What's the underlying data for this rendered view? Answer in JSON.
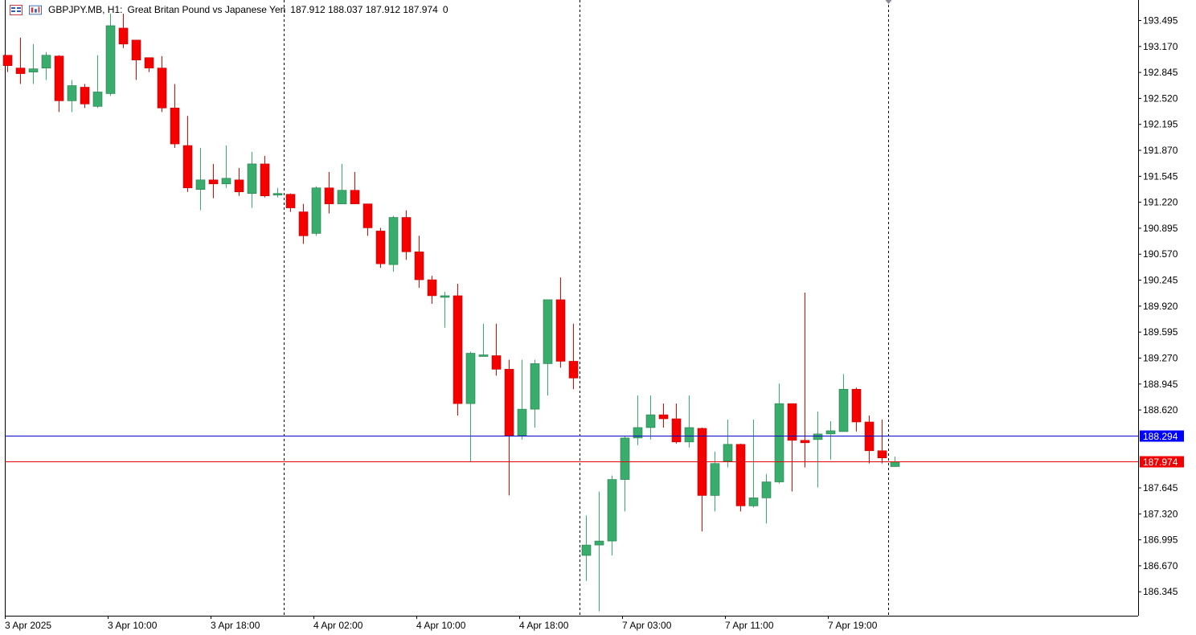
{
  "header": {
    "symbol": "GBPJPY.MB, H1:",
    "description": "Great Britan Pound vs Japanese Yen",
    "ohlc": "187.912 188.037 187.912 187.974",
    "extra": "0"
  },
  "colors": {
    "bull": "#3aac6b",
    "bear": "#f50000",
    "ask_line": "#0000c8",
    "bid_line": "#e00000",
    "ask_tag": "#0000ff",
    "bid_tag": "#f00000",
    "grid_sep": "#000000"
  },
  "chart_data": {
    "type": "candlestick",
    "symbol": "GBPJPY.MB",
    "timeframe": "H1",
    "ylim": [
      186.1,
      193.8
    ],
    "y_ticks": [
      "193.495",
      "193.170",
      "192.845",
      "192.520",
      "192.195",
      "191.870",
      "191.545",
      "191.220",
      "190.895",
      "190.570",
      "190.245",
      "189.920",
      "189.595",
      "189.270",
      "188.945",
      "188.620",
      "188.294",
      "187.974",
      "187.645",
      "187.320",
      "186.995",
      "186.670",
      "186.345"
    ],
    "x_labels": [
      "3 Apr 2025",
      "3 Apr 10:00",
      "3 Apr 18:00",
      "4 Apr 02:00",
      "4 Apr 10:00",
      "4 Apr 18:00",
      "7 Apr 03:00",
      "7 Apr 11:00",
      "7 Apr 19:00"
    ],
    "x_label_index": [
      0,
      8,
      16,
      24,
      32,
      40,
      48,
      56,
      64
    ],
    "day_separators_after_index": [
      21,
      44,
      68
    ],
    "ask_price": "188.294",
    "bid_price": "187.974",
    "candles": [
      [
        193.06,
        193.06,
        192.85,
        192.93
      ],
      [
        192.9,
        193.28,
        192.7,
        192.83
      ],
      [
        192.85,
        193.2,
        192.7,
        192.89
      ],
      [
        192.9,
        193.1,
        192.75,
        193.06
      ],
      [
        193.05,
        193.06,
        192.35,
        192.49
      ],
      [
        192.49,
        192.75,
        192.35,
        192.68
      ],
      [
        192.66,
        192.7,
        192.4,
        192.45
      ],
      [
        192.42,
        193.06,
        192.4,
        192.6
      ],
      [
        192.58,
        193.58,
        192.55,
        193.43
      ],
      [
        193.4,
        193.58,
        193.15,
        193.2
      ],
      [
        193.25,
        193.25,
        192.75,
        193.0
      ],
      [
        193.03,
        193.03,
        192.85,
        192.9
      ],
      [
        192.9,
        193.05,
        192.35,
        192.4
      ],
      [
        192.4,
        192.7,
        191.9,
        191.95
      ],
      [
        191.93,
        192.3,
        191.35,
        191.4
      ],
      [
        191.38,
        191.9,
        191.12,
        191.5
      ],
      [
        191.5,
        191.7,
        191.27,
        191.45
      ],
      [
        191.45,
        191.93,
        191.4,
        191.52
      ],
      [
        191.5,
        191.65,
        191.3,
        191.35
      ],
      [
        191.33,
        191.85,
        191.15,
        191.7
      ],
      [
        191.7,
        191.8,
        191.28,
        191.3
      ],
      [
        191.32,
        191.4,
        191.28,
        191.33
      ],
      [
        191.32,
        191.33,
        191.1,
        191.15
      ],
      [
        191.1,
        191.2,
        190.7,
        190.8
      ],
      [
        190.83,
        191.42,
        190.8,
        191.4
      ],
      [
        191.4,
        191.6,
        191.08,
        191.2
      ],
      [
        191.2,
        191.7,
        191.2,
        191.37
      ],
      [
        191.37,
        191.6,
        191.2,
        191.2
      ],
      [
        191.2,
        191.2,
        190.8,
        190.9
      ],
      [
        190.86,
        190.9,
        190.4,
        190.45
      ],
      [
        190.44,
        191.05,
        190.35,
        191.03
      ],
      [
        191.03,
        191.12,
        190.5,
        190.6
      ],
      [
        190.6,
        190.8,
        190.15,
        190.25
      ],
      [
        190.25,
        190.3,
        189.95,
        190.05
      ],
      [
        190.05,
        190.1,
        189.65,
        190.05
      ],
      [
        190.05,
        190.2,
        188.55,
        188.7
      ],
      [
        188.7,
        189.35,
        187.97,
        189.33
      ],
      [
        189.31,
        189.7,
        189.3,
        189.31
      ],
      [
        189.3,
        189.7,
        189.05,
        189.13
      ],
      [
        189.13,
        189.25,
        187.55,
        188.3
      ],
      [
        188.3,
        189.25,
        188.25,
        188.63
      ],
      [
        188.63,
        189.25,
        188.4,
        189.2
      ],
      [
        189.2,
        190.0,
        188.8,
        190.0
      ],
      [
        190.0,
        190.28,
        189.15,
        189.23
      ],
      [
        189.23,
        189.7,
        188.88,
        189.02
      ],
      [
        186.8,
        187.3,
        186.48,
        186.93
      ],
      [
        186.93,
        187.6,
        186.1,
        186.98
      ],
      [
        186.98,
        187.8,
        186.8,
        187.75
      ],
      [
        187.75,
        188.3,
        187.35,
        188.27
      ],
      [
        188.27,
        188.8,
        188.18,
        188.4
      ],
      [
        188.4,
        188.8,
        188.25,
        188.56
      ],
      [
        188.56,
        188.7,
        188.4,
        188.51
      ],
      [
        188.51,
        188.7,
        188.2,
        188.22
      ],
      [
        188.22,
        188.8,
        188.15,
        188.4
      ],
      [
        188.39,
        188.4,
        187.1,
        187.55
      ],
      [
        187.55,
        188.1,
        187.35,
        187.95
      ],
      [
        187.98,
        188.5,
        187.9,
        188.19
      ],
      [
        188.19,
        188.2,
        187.35,
        187.42
      ],
      [
        187.42,
        188.5,
        187.4,
        187.52
      ],
      [
        187.52,
        187.82,
        187.2,
        187.72
      ],
      [
        187.72,
        188.95,
        187.7,
        188.7
      ],
      [
        188.7,
        188.7,
        187.6,
        188.24
      ],
      [
        188.24,
        190.09,
        187.9,
        188.21
      ],
      [
        188.25,
        188.6,
        187.65,
        188.32
      ],
      [
        188.32,
        188.48,
        188.0,
        188.36
      ],
      [
        188.35,
        189.07,
        188.35,
        188.88
      ],
      [
        188.88,
        188.9,
        188.35,
        188.47
      ],
      [
        188.47,
        188.55,
        187.95,
        188.11
      ],
      [
        188.11,
        188.5,
        187.95,
        188.02
      ],
      [
        187.912,
        188.037,
        187.912,
        187.974
      ]
    ]
  }
}
